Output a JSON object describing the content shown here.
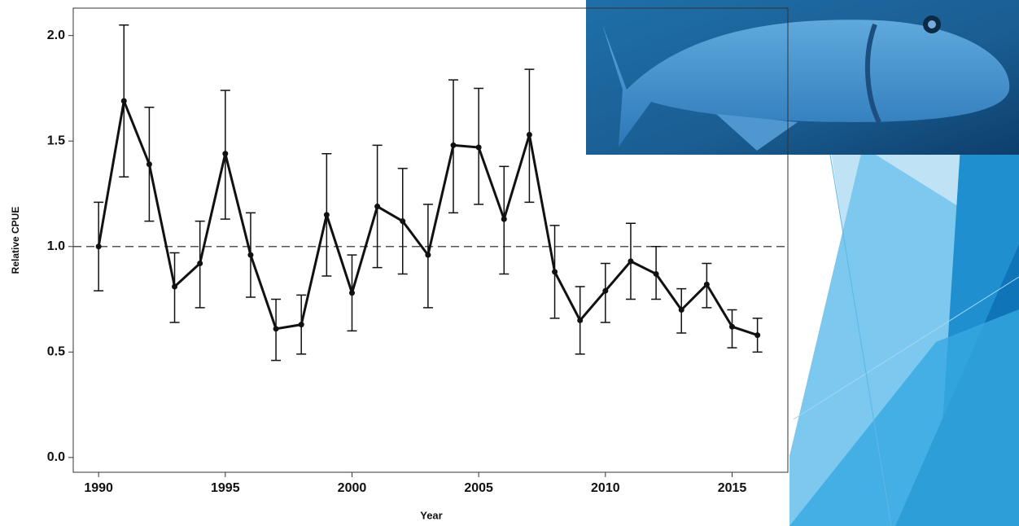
{
  "chart_data": {
    "type": "line",
    "x_label": "Year",
    "y_label": "Relative CPUE",
    "x": [
      1990,
      1991,
      1992,
      1993,
      1994,
      1995,
      1996,
      1997,
      1998,
      1999,
      2000,
      2001,
      2002,
      2003,
      2004,
      2005,
      2006,
      2007,
      2008,
      2009,
      2010,
      2011,
      2012,
      2013,
      2014,
      2015,
      2016
    ],
    "series": [
      {
        "color": "#111111",
        "values": [
          1.0,
          1.69,
          1.39,
          0.81,
          0.92,
          1.44,
          0.96,
          0.61,
          0.63,
          1.15,
          0.78,
          1.19,
          1.12,
          0.96,
          1.48,
          1.47,
          1.13,
          1.53,
          0.88,
          0.65,
          0.79,
          0.93,
          0.87,
          0.7,
          0.82,
          0.62,
          0.58
        ],
        "lower": [
          0.79,
          1.33,
          1.12,
          0.64,
          0.71,
          1.13,
          0.76,
          0.46,
          0.49,
          0.86,
          0.6,
          0.9,
          0.87,
          0.71,
          1.16,
          1.2,
          0.87,
          1.21,
          0.66,
          0.49,
          0.64,
          0.75,
          0.75,
          0.59,
          0.71,
          0.52,
          0.5
        ],
        "upper": [
          1.21,
          2.05,
          1.66,
          0.97,
          1.12,
          1.74,
          1.16,
          0.75,
          0.77,
          1.44,
          0.96,
          1.48,
          1.37,
          1.2,
          1.79,
          1.75,
          1.38,
          1.84,
          1.1,
          0.81,
          0.92,
          1.11,
          1.0,
          0.8,
          0.92,
          0.7,
          0.66
        ]
      }
    ],
    "reference_line": 1,
    "xlim": [
      1989,
      2017.2
    ],
    "xticks": [
      1990,
      1995,
      2000,
      2005,
      2010,
      2015
    ],
    "ylim": [
      -0.07,
      2.13
    ],
    "yticks": [
      {
        "value": 0,
        "label": "0.0"
      },
      0.5,
      {
        "value": 1,
        "label": "1.0"
      },
      1.5,
      {
        "value": 2,
        "label": "2.0"
      }
    ]
  }
}
